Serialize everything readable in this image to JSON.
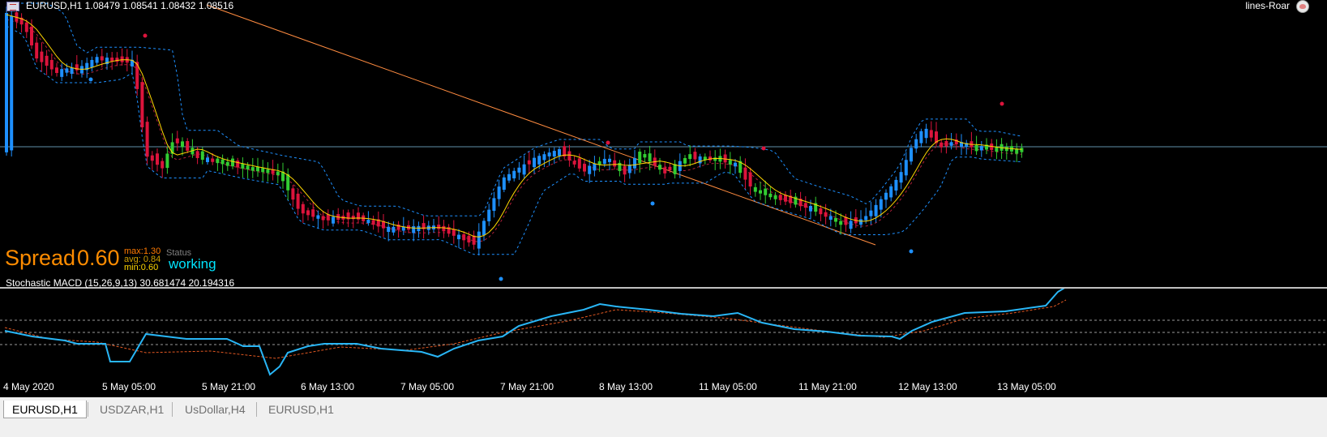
{
  "header": {
    "symbol_quote": "EURUSD,H1  1.08479 1.08541 1.08432 1.08516",
    "ea_name": "lines-Roar"
  },
  "spread_panel": {
    "label": "Spread",
    "value": "0.60",
    "max": "max:1.30",
    "avg": "avg: 0.84",
    "min": "min:0.60",
    "status_title": "Status",
    "status_value": "working"
  },
  "indicator": {
    "label": "Stochastic MACD (15,26,9,13) 30.681474 20.194316"
  },
  "time_axis": {
    "labels": [
      "4 May 2020",
      "5 May 05:00",
      "5 May 21:00",
      "6 May 13:00",
      "7 May 05:00",
      "7 May 21:00",
      "8 May 13:00",
      "11 May 05:00",
      "11 May 21:00",
      "12 May 13:00",
      "13 May 05:00"
    ]
  },
  "tabs": [
    {
      "label": "EURUSD,H1",
      "active": true
    },
    {
      "label": "USDZAR,H1",
      "active": false
    },
    {
      "label": "UsDollar,H4",
      "active": false
    },
    {
      "label": "EURUSD,H1",
      "active": false
    }
  ],
  "colors": {
    "bull_candle": "#1e90ff",
    "bear_candle": "#dc143c",
    "ma_line": "#ffd700",
    "trend_line": "#ff8c40",
    "stoch_main": "#29b6f6",
    "stoch_signal": "#e25822",
    "price_line": "#5f8fa8",
    "spread_text": "#ff8c00",
    "status_text": "#00e5ff"
  }
}
